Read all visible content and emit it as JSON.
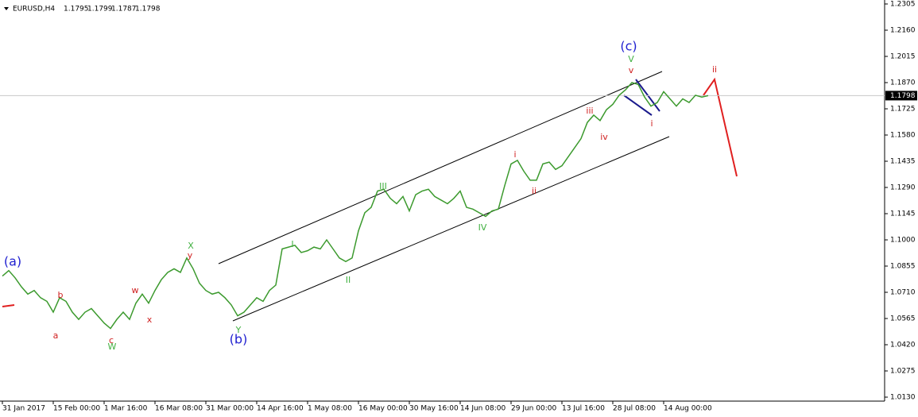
{
  "chart_data": {
    "type": "line",
    "symbol": "EURUSD,H4",
    "ohlc": [
      1.1795,
      1.1799,
      1.1787,
      1.1798
    ],
    "color": "#3c9a2e",
    "categories": [
      "31 Jan 2017",
      null,
      null,
      null,
      null,
      null,
      null,
      null,
      "15 Feb 00:00",
      null,
      null,
      null,
      null,
      null,
      null,
      null,
      "1 Mar 16:00",
      null,
      null,
      null,
      null,
      null,
      null,
      null,
      "16 Mar 08:00",
      null,
      null,
      null,
      null,
      null,
      null,
      null,
      "31 Mar 00:00",
      null,
      null,
      null,
      null,
      null,
      null,
      null,
      "14 Apr 16:00",
      null,
      null,
      null,
      null,
      null,
      null,
      null,
      "1 May 08:00",
      null,
      null,
      null,
      null,
      null,
      null,
      null,
      "16 May 00:00",
      null,
      null,
      null,
      null,
      null,
      null,
      null,
      "30 May 16:00",
      null,
      null,
      null,
      null,
      null,
      null,
      null,
      "14 Jun 08:00",
      null,
      null,
      null,
      null,
      null,
      null,
      null,
      "29 Jun 00:00",
      null,
      null,
      null,
      null,
      null,
      null,
      null,
      "13 Jul 16:00",
      null,
      null,
      null,
      null,
      null,
      null,
      null,
      "28 Jul 08:00",
      null,
      null,
      null,
      null,
      null,
      null,
      null,
      "14 Aug 00:00",
      null,
      null,
      null,
      null,
      null,
      null,
      null
    ],
    "values": [
      1.08,
      1.083,
      1.079,
      1.074,
      1.07,
      1.072,
      1.068,
      1.066,
      1.06,
      1.068,
      1.066,
      1.06,
      1.056,
      1.06,
      1.062,
      1.058,
      1.054,
      1.051,
      1.056,
      1.06,
      1.056,
      1.065,
      1.07,
      1.065,
      1.072,
      1.078,
      1.082,
      1.084,
      1.082,
      1.09,
      1.084,
      1.076,
      1.072,
      1.07,
      1.071,
      1.068,
      1.064,
      1.058,
      1.06,
      1.064,
      1.068,
      1.066,
      1.072,
      1.075,
      1.095,
      1.096,
      1.097,
      1.093,
      1.094,
      1.096,
      1.095,
      1.1,
      1.095,
      1.09,
      1.088,
      1.09,
      1.105,
      1.115,
      1.118,
      1.127,
      1.128,
      1.123,
      1.12,
      1.124,
      1.116,
      1.125,
      1.127,
      1.128,
      1.124,
      1.122,
      1.12,
      1.123,
      1.127,
      1.118,
      1.117,
      1.115,
      1.113,
      1.116,
      1.117,
      1.13,
      1.142,
      1.144,
      1.138,
      1.133,
      1.133,
      1.142,
      1.143,
      1.139,
      1.141,
      1.146,
      1.151,
      1.156,
      1.165,
      1.169,
      1.166,
      1.172,
      1.175,
      1.18,
      1.183,
      1.187,
      1.186,
      1.179,
      1.174,
      1.176,
      1.182,
      1.178,
      1.174,
      1.178,
      1.176,
      1.18,
      1.179,
      1.1798
    ],
    "last_price": 1.1798,
    "ylim": [
      1.0108,
      1.2327
    ],
    "yticks": [
      1.2305,
      {
        "value": 1.216,
        "label": "1.2160"
      },
      1.2015,
      {
        "value": 1.187,
        "label": "1.1870"
      },
      1.1725,
      {
        "value": 1.158,
        "label": "1.1580"
      },
      1.1435,
      {
        "value": 1.129,
        "label": "1.1290"
      },
      1.1145,
      {
        "value": 1.1,
        "label": "1.1000"
      },
      1.0855,
      {
        "value": 1.071,
        "label": "1.0710"
      },
      1.0565,
      {
        "value": 1.042,
        "label": "1.0420"
      },
      1.0275,
      {
        "value": 1.013,
        "label": "1.0130"
      }
    ],
    "annotations": [
      {
        "text": "(a)",
        "color": "#1f1fd0"
      },
      {
        "text": "(b)",
        "color": "#1f1fd0"
      },
      {
        "text": "(c)",
        "color": "#1f1fd0"
      },
      {
        "text": "a",
        "color": "#d02020"
      },
      {
        "text": "b",
        "color": "#d02020"
      },
      {
        "text": "c",
        "color": "#d02020"
      },
      {
        "text": "w",
        "color": "#d02020"
      },
      {
        "text": "x",
        "color": "#d02020"
      },
      {
        "text": "y",
        "color": "#d02020"
      },
      {
        "text": "W",
        "color": "#40b040"
      },
      {
        "text": "X",
        "color": "#40b040"
      },
      {
        "text": "Y",
        "color": "#40b040"
      },
      {
        "text": "I",
        "color": "#40b040"
      },
      {
        "text": "II",
        "color": "#40b040"
      },
      {
        "text": "III",
        "color": "#40b040"
      },
      {
        "text": "IV",
        "color": "#40b040"
      },
      {
        "text": "V",
        "color": "#40b040"
      },
      {
        "text": "i",
        "color": "#d02020"
      },
      {
        "text": "ii",
        "color": "#d02020"
      },
      {
        "text": "iii",
        "color": "#d02020"
      },
      {
        "text": "iv",
        "color": "#d02020"
      },
      {
        "text": "v",
        "color": "#d02020"
      },
      {
        "text": "i",
        "color": "#d02020"
      },
      {
        "text": "ii",
        "color": "#d02020"
      }
    ]
  }
}
